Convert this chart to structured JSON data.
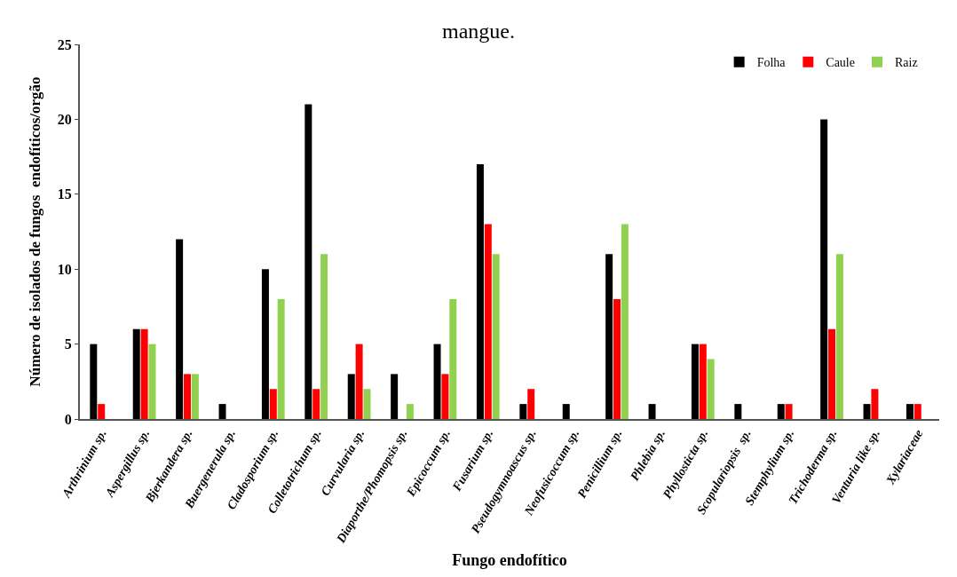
{
  "chart_data": {
    "type": "bar",
    "title": "mangue.",
    "xlabel": "Fungo endofítico",
    "ylabel": "Número de isolados de fungos  endofíticos/orgão",
    "categories": [
      "Arthrinium sp.",
      "Aspergillus sp.",
      "Bjerkandera sp.",
      "Buergenerula sp.",
      "Cladosporium sp.",
      "Colletotrichum sp.",
      "Curvularia sp.",
      "Diaporthe/Phomopsis sp.",
      "Epicoccum sp.",
      "Fusarium sp.",
      "Pseudogymnoascus sp.",
      "Neofusicoccum sp.",
      "Penicillium sp.",
      "Phlebia sp.",
      "Phyllosticta sp.",
      "Scopulariopsis  sp.",
      "Stemphylium sp.",
      "Trichoderma sp.",
      "Venturia like sp.",
      "Xylariaceae"
    ],
    "series": [
      {
        "name": "Folha",
        "color": "#000000",
        "values": [
          5,
          6,
          12,
          1,
          10,
          21,
          3,
          3,
          5,
          17,
          1,
          1,
          11,
          1,
          5,
          1,
          1,
          20,
          1,
          1
        ]
      },
      {
        "name": "Caule",
        "color": "#ff0000",
        "values": [
          1,
          6,
          3,
          0,
          2,
          2,
          5,
          0,
          3,
          13,
          2,
          0,
          8,
          0,
          5,
          0,
          1,
          6,
          2,
          1
        ]
      },
      {
        "name": "Raiz",
        "color": "#92d050",
        "values": [
          0,
          5,
          3,
          0,
          8,
          11,
          2,
          1,
          8,
          11,
          0,
          0,
          13,
          0,
          4,
          0,
          0,
          11,
          0,
          0
        ]
      }
    ],
    "ylim": [
      0,
      25
    ],
    "yticks": [
      0,
      5,
      10,
      15,
      20,
      25
    ],
    "legend": "top right"
  }
}
